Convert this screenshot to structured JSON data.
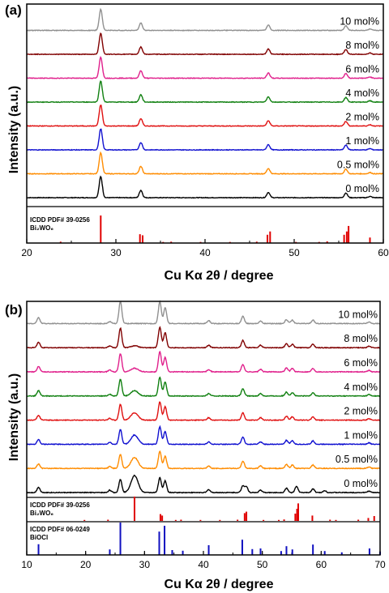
{
  "chart_data": [
    {
      "panel_label": "(a)",
      "type": "line",
      "xlabel": "Cu Kα 2θ / degree",
      "ylabel": "Intensity (a.u.)",
      "xlim": [
        20,
        60
      ],
      "xticks": [
        20,
        30,
        40,
        50,
        60
      ],
      "series_colors": [
        "#000000",
        "#ff8c00",
        "#1010d0",
        "#e01010",
        "#108010",
        "#e0208c",
        "#800000",
        "#909090"
      ],
      "series": [
        {
          "name": "0 mol%",
          "peaks": [
            [
              28.3,
              1.0
            ],
            [
              32.8,
              0.35
            ],
            [
              47.1,
              0.25
            ],
            [
              55.8,
              0.22
            ],
            [
              58.5,
              0.06
            ]
          ]
        },
        {
          "name": "0.5 mol%",
          "peaks": [
            [
              28.3,
              1.0
            ],
            [
              32.8,
              0.35
            ],
            [
              47.1,
              0.25
            ],
            [
              55.8,
              0.22
            ],
            [
              58.5,
              0.06
            ]
          ]
        },
        {
          "name": "1 mol%",
          "peaks": [
            [
              28.3,
              1.0
            ],
            [
              32.8,
              0.35
            ],
            [
              47.1,
              0.25
            ],
            [
              55.8,
              0.22
            ],
            [
              58.5,
              0.06
            ]
          ]
        },
        {
          "name": "2 mol%",
          "peaks": [
            [
              28.3,
              1.0
            ],
            [
              32.8,
              0.35
            ],
            [
              47.1,
              0.25
            ],
            [
              55.8,
              0.22
            ],
            [
              58.5,
              0.06
            ]
          ]
        },
        {
          "name": "4 mol%",
          "peaks": [
            [
              28.3,
              1.0
            ],
            [
              32.8,
              0.35
            ],
            [
              47.1,
              0.25
            ],
            [
              55.8,
              0.22
            ],
            [
              58.5,
              0.06
            ]
          ]
        },
        {
          "name": "6 mol%",
          "peaks": [
            [
              28.3,
              1.0
            ],
            [
              32.8,
              0.35
            ],
            [
              47.1,
              0.25
            ],
            [
              55.8,
              0.22
            ],
            [
              58.5,
              0.06
            ]
          ]
        },
        {
          "name": "8 mol%",
          "peaks": [
            [
              28.3,
              1.0
            ],
            [
              32.8,
              0.35
            ],
            [
              47.1,
              0.25
            ],
            [
              55.8,
              0.22
            ],
            [
              58.5,
              0.06
            ]
          ]
        },
        {
          "name": "10 mol%",
          "peaks": [
            [
              28.3,
              1.0
            ],
            [
              32.8,
              0.35
            ],
            [
              47.1,
              0.25
            ],
            [
              55.8,
              0.22
            ],
            [
              58.5,
              0.06
            ]
          ]
        }
      ],
      "references": [
        {
          "title": "ICDD PDF# 39-0256",
          "formula": "Bi₂WO₆",
          "color": "#e00000",
          "lines": [
            [
              28.3,
              1.0
            ],
            [
              32.7,
              0.32
            ],
            [
              33.0,
              0.28
            ],
            [
              47.0,
              0.3
            ],
            [
              47.3,
              0.42
            ],
            [
              55.6,
              0.3
            ],
            [
              55.9,
              0.42
            ],
            [
              56.1,
              0.62
            ],
            [
              58.5,
              0.2
            ],
            [
              23.8,
              0.05
            ],
            [
              35.3,
              0.04
            ],
            [
              36.2,
              0.05
            ],
            [
              39.5,
              0.04
            ],
            [
              42.8,
              0.04
            ],
            [
              45.8,
              0.05
            ],
            [
              50.2,
              0.04
            ],
            [
              52.8,
              0.04
            ],
            [
              53.7,
              0.06
            ]
          ]
        }
      ]
    },
    {
      "panel_label": "(b)",
      "type": "line",
      "xlabel": "Cu Kα 2θ / degree",
      "ylabel": "Intensity (a.u.)",
      "xlim": [
        10,
        70
      ],
      "xticks": [
        10,
        20,
        30,
        40,
        50,
        60,
        70
      ],
      "series_colors": [
        "#000000",
        "#ff8c00",
        "#1010d0",
        "#e01010",
        "#108010",
        "#e0208c",
        "#800000",
        "#909090"
      ],
      "series": [
        {
          "name": "0 mol%",
          "peaks": [
            [
              12.0,
              0.22
            ],
            [
              24.1,
              0.1
            ],
            [
              25.9,
              0.55
            ],
            [
              28.3,
              0.7
            ],
            [
              32.6,
              0.62
            ],
            [
              33.5,
              0.48
            ],
            [
              40.9,
              0.12
            ],
            [
              46.7,
              0.28
            ],
            [
              47.3,
              0.24
            ],
            [
              49.7,
              0.1
            ],
            [
              54.1,
              0.18
            ],
            [
              55.8,
              0.25
            ],
            [
              58.6,
              0.15
            ],
            [
              60.6,
              0.08
            ],
            [
              68.1,
              0.06
            ]
          ]
        },
        {
          "name": "0.5 mol%",
          "peaks": [
            [
              12.0,
              0.18
            ],
            [
              24.1,
              0.08
            ],
            [
              25.9,
              0.58
            ],
            [
              28.3,
              0.45
            ],
            [
              32.6,
              0.7
            ],
            [
              33.5,
              0.5
            ],
            [
              40.9,
              0.1
            ],
            [
              46.7,
              0.3
            ],
            [
              49.7,
              0.1
            ],
            [
              54.1,
              0.16
            ],
            [
              55.1,
              0.14
            ],
            [
              58.6,
              0.14
            ],
            [
              68.1,
              0.06
            ]
          ]
        },
        {
          "name": "1 mol%",
          "peaks": [
            [
              12.0,
              0.2
            ],
            [
              24.1,
              0.08
            ],
            [
              25.9,
              0.6
            ],
            [
              28.3,
              0.38
            ],
            [
              32.6,
              0.72
            ],
            [
              33.5,
              0.52
            ],
            [
              40.9,
              0.1
            ],
            [
              46.7,
              0.3
            ],
            [
              49.7,
              0.1
            ],
            [
              54.1,
              0.16
            ],
            [
              55.1,
              0.14
            ],
            [
              58.6,
              0.14
            ],
            [
              68.1,
              0.06
            ]
          ]
        },
        {
          "name": "2 mol%",
          "peaks": [
            [
              12.0,
              0.2
            ],
            [
              24.1,
              0.08
            ],
            [
              25.9,
              0.65
            ],
            [
              28.3,
              0.3
            ],
            [
              32.6,
              0.75
            ],
            [
              33.5,
              0.55
            ],
            [
              40.9,
              0.1
            ],
            [
              46.7,
              0.3
            ],
            [
              49.7,
              0.1
            ],
            [
              54.1,
              0.16
            ],
            [
              55.1,
              0.14
            ],
            [
              58.6,
              0.14
            ],
            [
              68.1,
              0.06
            ]
          ]
        },
        {
          "name": "4 mol%",
          "peaks": [
            [
              12.0,
              0.22
            ],
            [
              24.1,
              0.08
            ],
            [
              25.9,
              0.7
            ],
            [
              28.3,
              0.22
            ],
            [
              32.6,
              0.78
            ],
            [
              33.5,
              0.58
            ],
            [
              40.9,
              0.1
            ],
            [
              46.7,
              0.3
            ],
            [
              49.7,
              0.1
            ],
            [
              54.1,
              0.16
            ],
            [
              55.1,
              0.14
            ],
            [
              58.6,
              0.14
            ],
            [
              68.1,
              0.06
            ]
          ]
        },
        {
          "name": "6 mol%",
          "peaks": [
            [
              12.0,
              0.22
            ],
            [
              24.1,
              0.08
            ],
            [
              25.9,
              0.75
            ],
            [
              28.3,
              0.15
            ],
            [
              32.6,
              0.82
            ],
            [
              33.5,
              0.6
            ],
            [
              40.9,
              0.1
            ],
            [
              46.7,
              0.3
            ],
            [
              49.7,
              0.1
            ],
            [
              54.1,
              0.16
            ],
            [
              55.1,
              0.14
            ],
            [
              58.6,
              0.14
            ],
            [
              68.1,
              0.06
            ]
          ]
        },
        {
          "name": "8 mol%",
          "peaks": [
            [
              12.0,
              0.22
            ],
            [
              24.1,
              0.08
            ],
            [
              25.9,
              0.8
            ],
            [
              28.3,
              0.08
            ],
            [
              32.6,
              0.85
            ],
            [
              33.5,
              0.62
            ],
            [
              40.9,
              0.1
            ],
            [
              46.7,
              0.3
            ],
            [
              49.7,
              0.1
            ],
            [
              54.1,
              0.16
            ],
            [
              55.1,
              0.14
            ],
            [
              58.6,
              0.14
            ],
            [
              68.1,
              0.06
            ]
          ]
        },
        {
          "name": "10 mol%",
          "peaks": [
            [
              12.0,
              0.24
            ],
            [
              24.1,
              0.08
            ],
            [
              25.9,
              0.9
            ],
            [
              32.6,
              0.9
            ],
            [
              33.5,
              0.65
            ],
            [
              40.9,
              0.12
            ],
            [
              46.7,
              0.3
            ],
            [
              49.7,
              0.1
            ],
            [
              54.1,
              0.16
            ],
            [
              55.1,
              0.14
            ],
            [
              58.6,
              0.14
            ],
            [
              68.1,
              0.06
            ]
          ]
        }
      ],
      "references": [
        {
          "title": "ICDD PDF# 39-0256",
          "formula": "Bi₂WO₆",
          "color": "#e00000",
          "lines": [
            [
              28.3,
              1.0
            ],
            [
              32.7,
              0.28
            ],
            [
              33.0,
              0.22
            ],
            [
              47.0,
              0.32
            ],
            [
              47.3,
              0.38
            ],
            [
              55.6,
              0.3
            ],
            [
              55.9,
              0.5
            ],
            [
              56.1,
              0.72
            ],
            [
              58.5,
              0.22
            ],
            [
              68.0,
              0.12
            ],
            [
              19.8,
              0.04
            ],
            [
              23.8,
              0.05
            ],
            [
              35.3,
              0.04
            ],
            [
              36.2,
              0.05
            ],
            [
              39.5,
              0.04
            ],
            [
              42.8,
              0.04
            ],
            [
              45.8,
              0.05
            ],
            [
              50.2,
              0.04
            ],
            [
              52.8,
              0.04
            ],
            [
              53.7,
              0.06
            ],
            [
              61.5,
              0.05
            ],
            [
              62.5,
              0.04
            ],
            [
              66.3,
              0.05
            ],
            [
              69.0,
              0.2
            ]
          ]
        },
        {
          "title": "ICDD PDF# 06-0249",
          "formula": "BiOCl",
          "color": "#1010c0",
          "lines": [
            [
              12.0,
              0.33
            ],
            [
              24.1,
              0.17
            ],
            [
              25.9,
              1.0
            ],
            [
              32.5,
              0.72
            ],
            [
              33.4,
              0.9
            ],
            [
              34.7,
              0.15
            ],
            [
              36.5,
              0.13
            ],
            [
              40.9,
              0.3
            ],
            [
              46.6,
              0.47
            ],
            [
              48.3,
              0.18
            ],
            [
              49.7,
              0.2
            ],
            [
              53.2,
              0.12
            ],
            [
              54.1,
              0.27
            ],
            [
              55.1,
              0.17
            ],
            [
              58.6,
              0.32
            ],
            [
              60.6,
              0.12
            ],
            [
              63.5,
              0.08
            ],
            [
              68.2,
              0.2
            ],
            [
              70.0,
              0.1
            ]
          ]
        }
      ]
    }
  ]
}
